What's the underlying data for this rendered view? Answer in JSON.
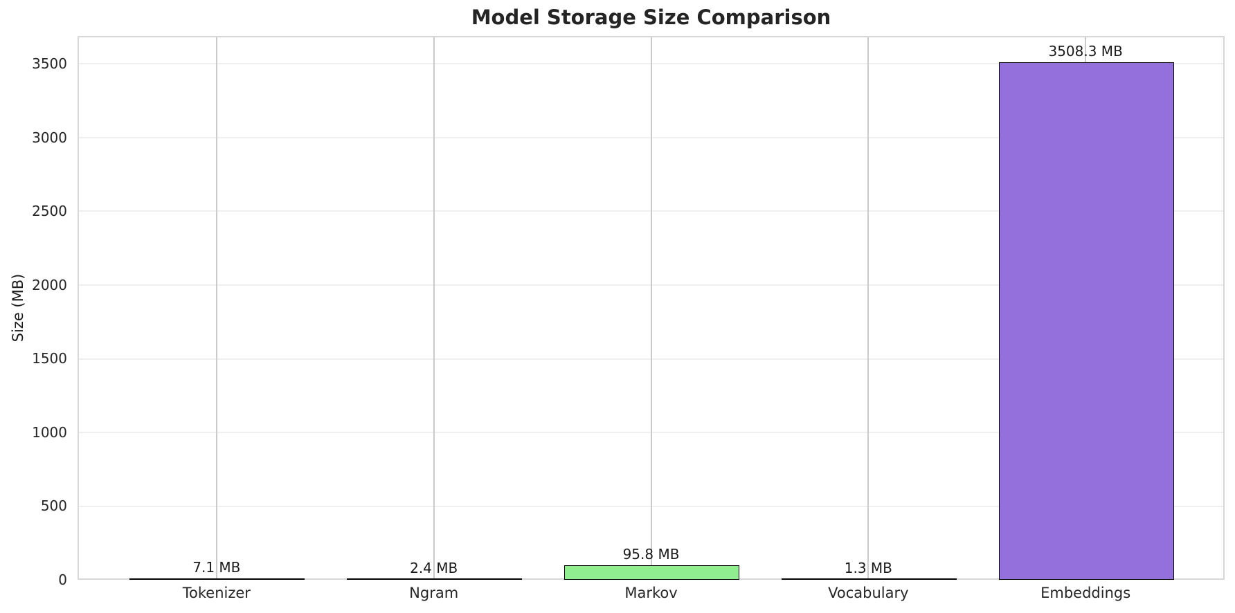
{
  "chart_data": {
    "type": "bar",
    "title": "Model Storage Size Comparison",
    "xlabel": "",
    "ylabel": "Size (MB)",
    "categories": [
      "Tokenizer",
      "Ngram",
      "Markov",
      "Vocabulary",
      "Embeddings"
    ],
    "values": [
      7.1,
      2.4,
      95.8,
      1.3,
      3508.3
    ],
    "value_labels": [
      "7.1 MB",
      "2.4 MB",
      "95.8 MB",
      "1.3 MB",
      "3508.3 MB"
    ],
    "bar_colors": [
      "#87CEEB",
      "#F08080",
      "#90EE90",
      "#FFD700",
      "#9370DB"
    ],
    "bar_edge_color": "#000000",
    "yticks": [
      0,
      500,
      1000,
      1500,
      2000,
      2500,
      3000,
      3500
    ],
    "ylim": [
      0,
      3690
    ],
    "grid": true,
    "legend_position": "none",
    "background_color": "#ffffff",
    "grid_color_horizontal": "#efefef",
    "grid_color_vertical": "#cacaca",
    "spine_color": "#d7d7d7",
    "title_color": "#242424",
    "tick_label_color": "#262626"
  }
}
